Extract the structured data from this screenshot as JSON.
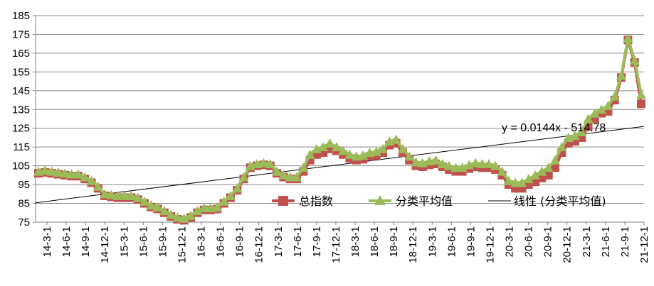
{
  "chart_data": {
    "type": "line",
    "ylim": [
      75,
      185
    ],
    "yticks": [
      75,
      85,
      95,
      105,
      115,
      125,
      135,
      145,
      155,
      165,
      175,
      185
    ],
    "x_labels": [
      "14-3-1",
      "14-6-1",
      "14-9-1",
      "14-12-1",
      "15-3-1",
      "15-6-1",
      "15-9-1",
      "15-12-1",
      "16-3-1",
      "16-6-1",
      "16-9-1",
      "16-12-1",
      "17-3-1",
      "17-6-1",
      "17-9-1",
      "17-12-1",
      "18-3-1",
      "18-6-1",
      "18-9-1",
      "18-12-1",
      "19-3-1",
      "19-6-1",
      "19-9-1",
      "19-12-1",
      "20-3-1",
      "20-6-1",
      "20-9-1",
      "20-12-1",
      "21-3-1",
      "21-6-1",
      "21-9-1",
      "21-12-1"
    ],
    "grid": true,
    "legend_placement": "center-right",
    "trendline_equation": "y = 0.0144x - 514.78",
    "trendline": {
      "start": 85.3,
      "end": 126.0
    },
    "series": [
      {
        "name": "总指数",
        "color": "#c0504d",
        "marker": "square",
        "values": [
          101,
          101.5,
          101,
          100.5,
          100,
          99.5,
          99.5,
          98,
          96,
          93,
          89,
          88.5,
          88,
          88,
          88,
          87,
          85,
          83,
          82,
          80,
          78,
          76.5,
          76,
          77.5,
          80,
          81.5,
          81.5,
          82,
          85,
          88,
          92,
          98,
          104,
          105,
          105.5,
          105,
          101,
          99,
          98,
          98,
          102,
          108,
          111,
          112,
          114,
          113,
          111,
          109,
          108,
          108.5,
          110,
          110.5,
          112,
          116,
          117,
          112,
          108,
          105,
          104.5,
          105.5,
          106,
          104.5,
          103,
          102,
          102,
          103.5,
          104.5,
          104,
          104,
          103,
          100,
          95,
          93,
          93,
          95,
          96.5,
          98.5,
          100,
          104,
          112,
          117,
          118,
          120,
          126,
          130,
          133,
          134,
          140,
          152,
          172,
          160,
          138
        ]
      },
      {
        "name": "分类平均值",
        "color": "#9bbb59",
        "marker": "triangle",
        "values": [
          102,
          102.5,
          102,
          101.5,
          101,
          100.5,
          100.5,
          99,
          97,
          94,
          90,
          89.5,
          89,
          89,
          89,
          88,
          86,
          84,
          83,
          81,
          79,
          77.5,
          77,
          78.5,
          81,
          82.5,
          82.5,
          83,
          86,
          89,
          93,
          99,
          105,
          106,
          106.5,
          106,
          102,
          100,
          99,
          99,
          104,
          111,
          114,
          115,
          117,
          115,
          113,
          111,
          110,
          110.5,
          112,
          112.5,
          114,
          118,
          119,
          114,
          110,
          107,
          106.5,
          107.5,
          108,
          106,
          105,
          104,
          104,
          105.5,
          106.5,
          106,
          106,
          105,
          102,
          97,
          96,
          96,
          98,
          100,
          102,
          104,
          108,
          115,
          120,
          121,
          123,
          130,
          133,
          135,
          137,
          142,
          153,
          173,
          161,
          143
        ]
      },
      {
        "name": "线性 (分类平均值)",
        "color": "#000000",
        "marker": "none"
      }
    ]
  }
}
